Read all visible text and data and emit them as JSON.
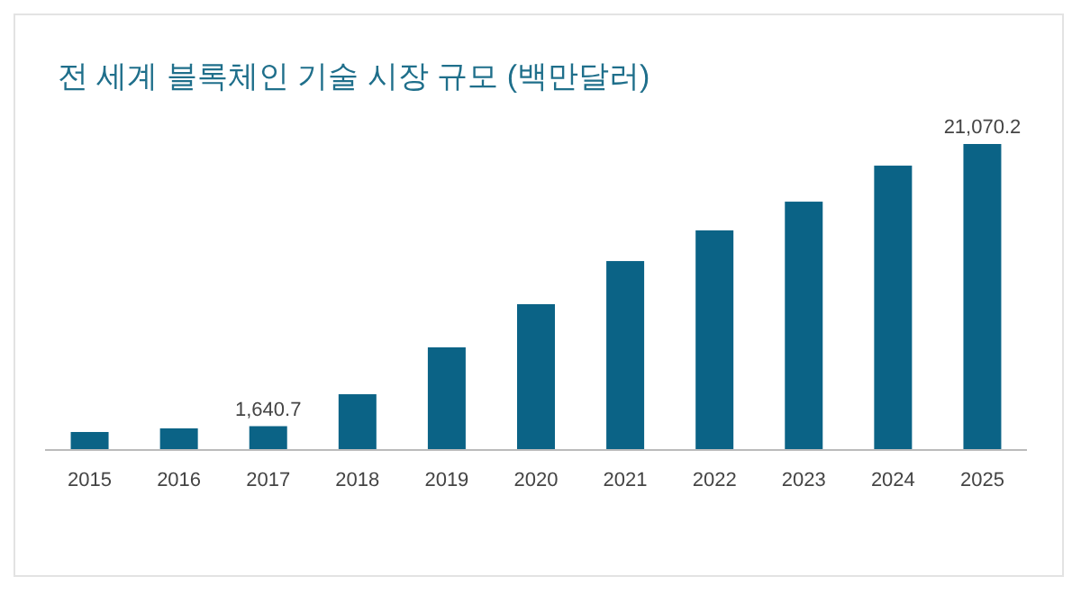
{
  "chart_data": {
    "type": "bar",
    "title": "전 세계 블록체인 기술 시장 규모 (백만달러)",
    "categories": [
      "2015",
      "2016",
      "2017",
      "2018",
      "2019",
      "2020",
      "2021",
      "2022",
      "2023",
      "2024",
      "2025"
    ],
    "values": [
      1240,
      1490,
      1640.7,
      3840,
      7070,
      10040,
      13010,
      15120,
      17100,
      19580,
      21070.2
    ],
    "value_labels": [
      null,
      null,
      "1,640.7",
      null,
      null,
      null,
      null,
      null,
      null,
      null,
      "21,070.2"
    ],
    "color": "#0b6386"
  }
}
